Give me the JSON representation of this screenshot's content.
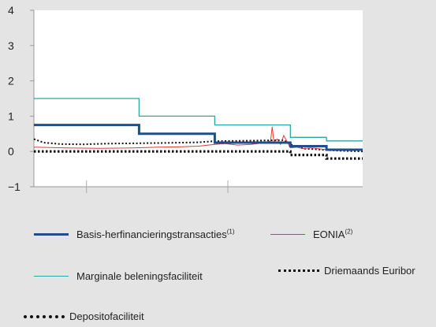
{
  "chart_data": {
    "type": "line",
    "ylim": [
      -1,
      4
    ],
    "yticks": [
      "4",
      "3",
      "2",
      "1",
      "0",
      "−1"
    ],
    "x_range": [
      0,
      100
    ],
    "grid": false,
    "series": [
      {
        "name": "Basis-herfinancieringstransacties",
        "name_sup": "(1)",
        "color": "#1f4e8c",
        "style": "thick-step",
        "x": [
          0,
          32,
          32,
          55,
          55,
          78,
          78,
          89,
          89,
          100
        ],
        "y": [
          0.75,
          0.75,
          0.5,
          0.5,
          0.25,
          0.25,
          0.15,
          0.15,
          0.05,
          0.05
        ]
      },
      {
        "name": "EONIA",
        "name_sup": "(2)",
        "color": "#e03a3a",
        "style": "thin",
        "x": [
          0,
          10,
          20,
          30,
          38,
          44,
          50,
          55,
          58,
          62,
          66,
          68,
          70,
          72,
          72.5,
          73,
          74,
          75,
          76,
          77,
          78,
          80,
          82,
          84,
          86,
          88,
          90,
          92,
          94,
          96,
          98,
          100
        ],
        "y": [
          0.12,
          0.1,
          0.09,
          0.1,
          0.12,
          0.13,
          0.15,
          0.2,
          0.22,
          0.18,
          0.2,
          0.22,
          0.25,
          0.3,
          0.7,
          0.25,
          0.35,
          0.2,
          0.45,
          0.28,
          0.1,
          0.12,
          0.08,
          0.1,
          0.09,
          0.06,
          0.05,
          0.03,
          0.05,
          0.02,
          0.04,
          0.02
        ]
      },
      {
        "name": "Marginale beleningsfaciliteit",
        "color": "#2aa6a6",
        "style": "thin-step",
        "x": [
          0,
          32,
          32,
          55,
          55,
          78,
          78,
          89,
          89,
          100
        ],
        "y": [
          1.5,
          1.5,
          1.0,
          1.0,
          0.75,
          0.75,
          0.4,
          0.4,
          0.3,
          0.3
        ]
      },
      {
        "name": "Driemaands Euribor",
        "color": "#111111",
        "style": "dotted",
        "x": [
          0,
          3,
          8,
          15,
          22,
          30,
          40,
          50,
          55,
          62,
          70,
          76,
          78,
          82,
          86,
          89,
          93,
          97,
          100
        ],
        "y": [
          0.35,
          0.25,
          0.21,
          0.2,
          0.22,
          0.23,
          0.24,
          0.26,
          0.29,
          0.3,
          0.31,
          0.32,
          0.2,
          0.08,
          0.06,
          0.04,
          0.02,
          0.01,
          0.0
        ]
      },
      {
        "name": "Depositofaciliteit",
        "color": "#111111",
        "style": "thick-dotted",
        "x": [
          0,
          78,
          78,
          89,
          89,
          100
        ],
        "y": [
          0.0,
          0.0,
          -0.1,
          -0.1,
          -0.2,
          -0.2
        ]
      }
    ]
  }
}
